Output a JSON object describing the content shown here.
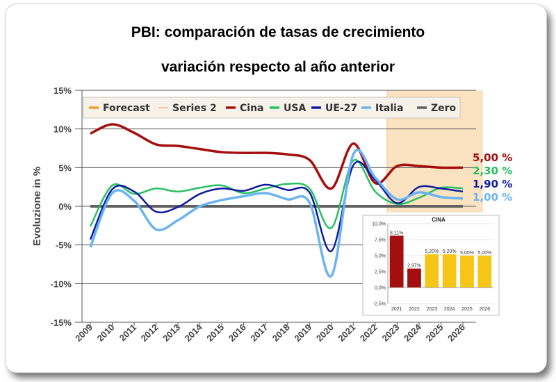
{
  "title_line1": "PBI: comparación de tasas de crecimiento",
  "title_line2": "variación respecto al año anterior",
  "chart_data": [
    {
      "type": "line",
      "ylabel": "Evoluzione in %",
      "ylim": [
        -15,
        15
      ],
      "yticks": [
        "15%",
        "10%",
        "5%",
        "0%",
        "-5%",
        "-10%",
        "-15%"
      ],
      "x": [
        "2009",
        "2010",
        "2011",
        "2012",
        "2013",
        "2014",
        "2015",
        "2016",
        "2017",
        "2018",
        "2019",
        "2020",
        "2021",
        "2022",
        "2023",
        "2024",
        "2025",
        "2026"
      ],
      "forecast_from": "2022",
      "legend_position": "top",
      "legend": [
        "Forecast",
        "Series 2",
        "Cina",
        "USA",
        "UE-27",
        "Italia",
        "Zero"
      ],
      "legend_colors": [
        "#f0a030",
        "#f5b56a",
        "#a50e0e",
        "#27c062",
        "#0f1aa0",
        "#6ab4f2",
        "#606060"
      ],
      "series": [
        {
          "name": "Cina",
          "color": "#a50e0e",
          "values": [
            9.4,
            10.6,
            9.5,
            8.0,
            7.8,
            7.4,
            7.0,
            6.9,
            6.9,
            6.7,
            6.0,
            2.3,
            8.1,
            3.0,
            5.2,
            5.2,
            5.0,
            5.0
          ]
        },
        {
          "name": "USA",
          "color": "#27c062",
          "values": [
            -2.6,
            2.7,
            1.6,
            2.3,
            1.9,
            2.4,
            2.7,
            1.7,
            2.3,
            2.9,
            2.3,
            -2.8,
            5.9,
            1.9,
            0.3,
            1.1,
            2.4,
            2.3
          ]
        },
        {
          "name": "UE-27",
          "color": "#0f1aa0",
          "values": [
            -4.3,
            2.2,
            1.9,
            -0.7,
            -0.1,
            1.6,
            2.3,
            2.0,
            2.8,
            2.1,
            1.8,
            -5.8,
            5.3,
            3.4,
            0.4,
            2.5,
            2.3,
            1.9
          ]
        },
        {
          "name": "Italia",
          "color": "#6ab4f2",
          "values": [
            -5.3,
            1.7,
            0.7,
            -3.0,
            -1.8,
            0.0,
            0.8,
            1.3,
            1.7,
            0.9,
            0.5,
            -9.0,
            6.7,
            3.7,
            0.9,
            1.8,
            1.2,
            1.0
          ]
        },
        {
          "name": "Zero",
          "color": "#606060",
          "values": [
            0,
            0,
            0,
            0,
            0,
            0,
            0,
            0,
            0,
            0,
            0,
            0,
            0,
            0,
            0,
            0,
            0,
            0
          ]
        }
      ],
      "end_labels": [
        {
          "text": "5,00 %",
          "color": "#a50e0e"
        },
        {
          "text": "2,30 %",
          "color": "#27c062"
        },
        {
          "text": "1,90 %",
          "color": "#0f1aa0"
        },
        {
          "text": "1,00 %",
          "color": "#6ab4f2"
        }
      ]
    },
    {
      "type": "bar",
      "title": "CINA",
      "ylim": [
        -2.5,
        10
      ],
      "yticks": [
        "10,0%",
        "7,5%",
        "5,0%",
        "2,5%",
        "0,0%",
        "-2,5%"
      ],
      "categories": [
        "2021",
        "2022",
        "2023",
        "2024",
        "2025",
        "2026"
      ],
      "values": [
        8.11,
        2.97,
        5.2,
        5.2,
        5.0,
        5.0
      ],
      "labels": [
        "8,11%",
        "2,97%",
        "5,20%",
        "5,20%",
        "5,00%",
        "5,00%"
      ],
      "colors": [
        "#a50e0e",
        "#a50e0e",
        "#f5c518",
        "#f5c518",
        "#f5c518",
        "#f5c518"
      ]
    }
  ]
}
